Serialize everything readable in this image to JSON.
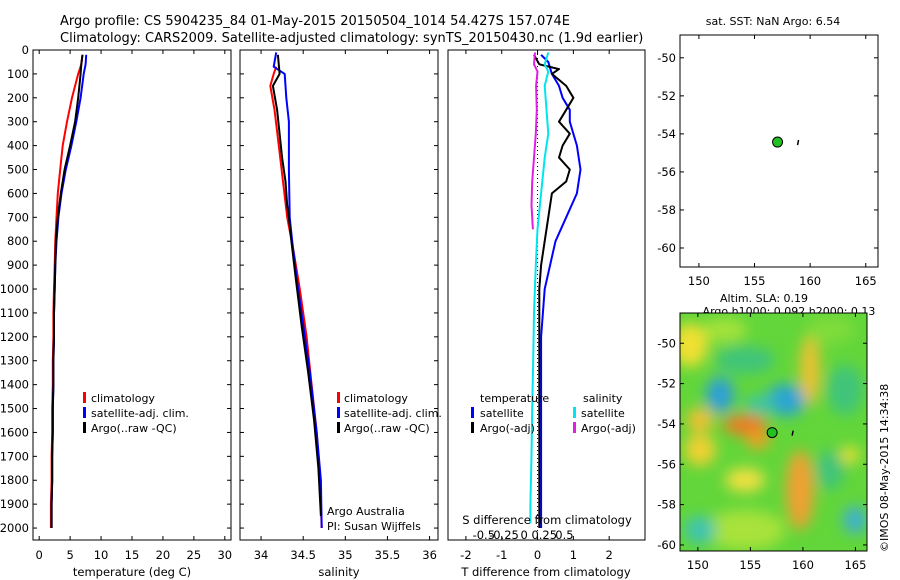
{
  "header": {
    "title_line1": "Argo profile: CS 5904235_84 01-May-2015 20150504_1014 54.427S 157.074E",
    "title_line2": "Climatology: CARS2009. Satellite-adjusted climatology: synTS_20150430.nc (1.9d earlier)"
  },
  "colors": {
    "climatology": "#ff0000",
    "satellite": "#0000ff",
    "argo": "#000000",
    "cyan": "#00e5ee",
    "magenta": "#e020e0",
    "marker": "#22c022"
  },
  "chart_data": [
    {
      "id": "temperature",
      "type": "line",
      "xlabel": "temperature (deg C)",
      "xlim": [
        -1,
        31
      ],
      "xticks": [
        0,
        5,
        10,
        15,
        20,
        25,
        30
      ],
      "ylim": [
        0,
        2050
      ],
      "yticks": [
        0,
        100,
        200,
        300,
        400,
        500,
        600,
        700,
        800,
        900,
        1000,
        1100,
        1200,
        1300,
        1400,
        1500,
        1600,
        1700,
        1800,
        1900,
        2000
      ],
      "legend": [
        "climatology",
        "satellite-adj. clim.",
        "Argo(..raw -QC)"
      ],
      "series": [
        {
          "name": "climatology",
          "color": "#ff0000",
          "points": [
            [
              7.0,
              20
            ],
            [
              6.8,
              60
            ],
            [
              6.3,
              100
            ],
            [
              5.3,
              200
            ],
            [
              4.5,
              300
            ],
            [
              3.8,
              400
            ],
            [
              3.4,
              500
            ],
            [
              3.0,
              600
            ],
            [
              2.8,
              700
            ],
            [
              2.6,
              800
            ],
            [
              2.5,
              900
            ],
            [
              2.4,
              1000
            ],
            [
              2.3,
              1100
            ],
            [
              2.3,
              1200
            ],
            [
              2.2,
              1300
            ],
            [
              2.2,
              1400
            ],
            [
              2.1,
              1500
            ],
            [
              2.1,
              1600
            ],
            [
              2.0,
              1700
            ],
            [
              2.0,
              1800
            ],
            [
              1.9,
              1900
            ],
            [
              1.9,
              2000
            ]
          ]
        },
        {
          "name": "satellite-adj. clim.",
          "color": "#0000ff",
          "points": [
            [
              7.6,
              20
            ],
            [
              7.5,
              60
            ],
            [
              7.2,
              100
            ],
            [
              6.7,
              200
            ],
            [
              6.0,
              300
            ],
            [
              5.2,
              400
            ],
            [
              4.3,
              500
            ],
            [
              3.6,
              600
            ],
            [
              3.1,
              700
            ],
            [
              2.8,
              800
            ],
            [
              2.6,
              900
            ],
            [
              2.5,
              1000
            ],
            [
              2.4,
              1100
            ],
            [
              2.4,
              1200
            ],
            [
              2.3,
              1300
            ],
            [
              2.3,
              1400
            ],
            [
              2.2,
              1500
            ],
            [
              2.2,
              1600
            ],
            [
              2.1,
              1700
            ],
            [
              2.1,
              1800
            ],
            [
              2.0,
              1900
            ],
            [
              2.0,
              2000
            ]
          ]
        },
        {
          "name": "Argo(..raw -QC)",
          "color": "#000000",
          "points": [
            [
              7.0,
              20
            ],
            [
              6.8,
              60
            ],
            [
              6.7,
              100
            ],
            [
              6.3,
              200
            ],
            [
              5.8,
              300
            ],
            [
              5.0,
              400
            ],
            [
              4.1,
              500
            ],
            [
              3.5,
              600
            ],
            [
              3.0,
              700
            ],
            [
              2.7,
              800
            ],
            [
              2.6,
              900
            ],
            [
              2.5,
              1000
            ],
            [
              2.4,
              1100
            ],
            [
              2.4,
              1200
            ],
            [
              2.3,
              1300
            ],
            [
              2.3,
              1400
            ],
            [
              2.2,
              1500
            ],
            [
              2.2,
              1600
            ],
            [
              2.1,
              1700
            ],
            [
              2.1,
              1800
            ],
            [
              2.0,
              1900
            ],
            [
              2.0,
              2000
            ]
          ]
        }
      ]
    },
    {
      "id": "salinity",
      "type": "line",
      "xlabel": "salinity",
      "xlim": [
        33.75,
        36.1
      ],
      "xticks": [
        34,
        34.5,
        35,
        35.5,
        36
      ],
      "xticklabels": [
        "34",
        "34.5",
        "35",
        "35.5",
        "36"
      ],
      "ylim": [
        0,
        2050
      ],
      "legend": [
        "climatology",
        "satellite-adj. clim.",
        "Argo(..raw -QC)"
      ],
      "annotations": [
        "Argo Australia",
        "PI: Susan Wijffels"
      ],
      "series": [
        {
          "name": "climatology",
          "color": "#ff0000",
          "points": [
            [
              34.18,
              70
            ],
            [
              34.15,
              100
            ],
            [
              34.11,
              150
            ],
            [
              34.16,
              250
            ],
            [
              34.21,
              400
            ],
            [
              34.26,
              550
            ],
            [
              34.31,
              700
            ],
            [
              34.39,
              850
            ],
            [
              34.46,
              1000
            ],
            [
              34.54,
              1200
            ],
            [
              34.6,
              1400
            ],
            [
              34.66,
              1600
            ],
            [
              34.7,
              1800
            ],
            [
              34.72,
              2000
            ]
          ]
        },
        {
          "name": "satellite-adj. clim.",
          "color": "#0000ff",
          "points": [
            [
              34.18,
              10
            ],
            [
              34.15,
              70
            ],
            [
              34.28,
              100
            ],
            [
              34.3,
              200
            ],
            [
              34.33,
              300
            ],
            [
              34.33,
              500
            ],
            [
              34.34,
              700
            ],
            [
              34.37,
              800
            ],
            [
              34.42,
              950
            ],
            [
              34.5,
              1150
            ],
            [
              34.58,
              1350
            ],
            [
              34.66,
              1600
            ],
            [
              34.71,
              1800
            ],
            [
              34.72,
              2000
            ]
          ]
        },
        {
          "name": "Argo(..raw -QC)",
          "color": "#000000",
          "points": [
            [
              34.2,
              20
            ],
            [
              34.22,
              100
            ],
            [
              34.14,
              150
            ],
            [
              34.19,
              250
            ],
            [
              34.22,
              350
            ],
            [
              34.25,
              450
            ],
            [
              34.29,
              550
            ],
            [
              34.31,
              650
            ],
            [
              34.33,
              700
            ],
            [
              34.36,
              800
            ],
            [
              34.41,
              950
            ],
            [
              34.48,
              1150
            ],
            [
              34.56,
              1350
            ],
            [
              34.63,
              1550
            ],
            [
              34.68,
              1750
            ],
            [
              34.71,
              1950
            ]
          ]
        }
      ]
    },
    {
      "id": "differences",
      "type": "line",
      "xlabel": "T difference from climatology",
      "x2label": "S difference from climatology",
      "xlim": [
        -2.5,
        3.0
      ],
      "xticks": [
        -2,
        -1,
        0,
        1,
        2
      ],
      "x2ticks": [
        -0.5,
        -0.25,
        0,
        0.25,
        0.5
      ],
      "x2ticklabels": [
        "-0.5",
        "-0.25",
        "0",
        "0.25",
        "0.5"
      ],
      "ylim": [
        0,
        2050
      ],
      "legend_headers": [
        "temperature",
        "salinity"
      ],
      "legend": [
        "satellite",
        "Argo(-adj)",
        "satellite",
        "Argo(-adj)"
      ],
      "series": [
        {
          "name": "temperature satellite",
          "color": "#0000ff",
          "points": [
            [
              0.1,
              20
            ],
            [
              0.3,
              50
            ],
            [
              0.4,
              100
            ],
            [
              0.6,
              150
            ],
            [
              0.7,
              200
            ],
            [
              0.9,
              250
            ],
            [
              0.9,
              300
            ],
            [
              1.1,
              400
            ],
            [
              1.2,
              500
            ],
            [
              1.1,
              600
            ],
            [
              0.8,
              700
            ],
            [
              0.5,
              800
            ],
            [
              0.35,
              900
            ],
            [
              0.2,
              1000
            ],
            [
              0.15,
              1100
            ],
            [
              0.1,
              1200
            ],
            [
              0.1,
              1400
            ],
            [
              0.1,
              1600
            ],
            [
              0.1,
              1800
            ],
            [
              0.1,
              2000
            ]
          ]
        },
        {
          "name": "temperature Argo(-adj)",
          "color": "#000000",
          "points": [
            [
              -0.1,
              20
            ],
            [
              0.05,
              60
            ],
            [
              0.6,
              80
            ],
            [
              0.4,
              100
            ],
            [
              0.8,
              150
            ],
            [
              1.0,
              200
            ],
            [
              0.8,
              250
            ],
            [
              0.6,
              300
            ],
            [
              0.9,
              350
            ],
            [
              0.7,
              400
            ],
            [
              0.6,
              450
            ],
            [
              0.9,
              500
            ],
            [
              0.8,
              550
            ],
            [
              0.4,
              600
            ],
            [
              0.3,
              700
            ],
            [
              0.2,
              800
            ],
            [
              0.1,
              900
            ],
            [
              0.05,
              1000
            ],
            [
              0.05,
              1200
            ],
            [
              0.05,
              1400
            ],
            [
              0.05,
              1600
            ],
            [
              0.05,
              1800
            ],
            [
              0.05,
              2000
            ]
          ]
        },
        {
          "name": "salinity satellite",
          "color": "#00e5ee",
          "points": [
            [
              0.3,
              10
            ],
            [
              0.2,
              60
            ],
            [
              0.3,
              90
            ],
            [
              0.2,
              150
            ],
            [
              0.25,
              250
            ],
            [
              0.3,
              350
            ],
            [
              0.2,
              450
            ],
            [
              0.1,
              600
            ],
            [
              0.0,
              750
            ],
            [
              -0.05,
              900
            ],
            [
              -0.1,
              1100
            ],
            [
              -0.12,
              1300
            ],
            [
              -0.15,
              1500
            ],
            [
              -0.17,
              1700
            ],
            [
              -0.2,
              1900
            ],
            [
              -0.2,
              1980
            ]
          ]
        },
        {
          "name": "salinity Argo(-adj)",
          "color": "#e020e0",
          "points": [
            [
              -0.07,
              10
            ],
            [
              -0.1,
              60
            ],
            [
              0.0,
              90
            ],
            [
              -0.04,
              150
            ],
            [
              -0.02,
              250
            ],
            [
              -0.05,
              350
            ],
            [
              -0.1,
              450
            ],
            [
              -0.15,
              550
            ],
            [
              -0.17,
              650
            ],
            [
              -0.13,
              750
            ]
          ]
        }
      ]
    }
  ],
  "map_sst": {
    "title": "sat. SST: NaN Argo: 6.54",
    "xlim": [
      148.3,
      166.1
    ],
    "ylim": [
      -61,
      -48.8
    ],
    "xticks": [
      150,
      155,
      160,
      165
    ],
    "yticks": [
      -50,
      -52,
      -54,
      -56,
      -58,
      -60
    ],
    "marker": [
      157.07,
      -54.43
    ]
  },
  "map_sla": {
    "title_line1": "Altim. SLA: 0.19",
    "title_line2": "Argo h1000: 0.092 h2000: 0.13",
    "credit": "©IMOS 08-May-2015 14:34:38",
    "xlim": [
      148.3,
      166.1
    ],
    "ylim": [
      -60.3,
      -48.5
    ],
    "xticks": [
      150,
      155,
      160,
      165
    ],
    "yticks": [
      -50,
      -52,
      -54,
      -56,
      -58,
      -60
    ],
    "marker": [
      157.07,
      -54.43
    ]
  }
}
